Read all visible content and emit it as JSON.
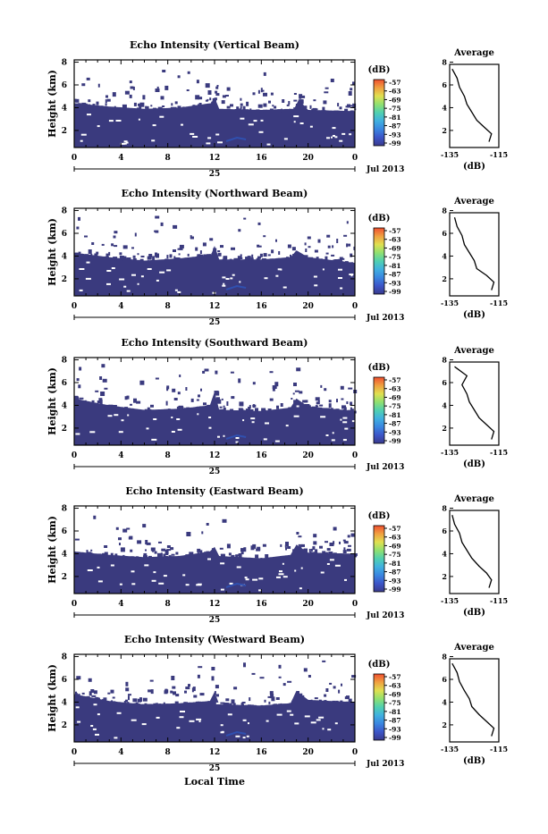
{
  "figure": {
    "xlabel_bottom": "Local Time",
    "date_tick": "25",
    "date_label": "Jul 2013",
    "x_ticks": [
      "0",
      "4",
      "8",
      "12",
      "16",
      "20",
      "0"
    ],
    "y_ticks": [
      "2",
      "4",
      "6",
      "8"
    ],
    "ylabel": "Height (km)",
    "colorbar_unit": "(dB)",
    "colorbar_ticks": [
      "-57",
      "-63",
      "-69",
      "-75",
      "-81",
      "-87",
      "-93",
      "-99"
    ],
    "avg_title": "Average",
    "avg_xticks": [
      "-135",
      "-115"
    ],
    "avg_xlabel": "(dB)",
    "colors": {
      "low_echo": "#3a3a7e",
      "mid_echo": "#3050b0",
      "colorbar": [
        "#3a3a8c",
        "#3c55c8",
        "#3a86e0",
        "#40b0e0",
        "#50d0b0",
        "#90e070",
        "#e0e050",
        "#f0a040",
        "#f05030"
      ]
    }
  },
  "chart_data": [
    {
      "type": "heatmap",
      "title": "Echo Intensity (Vertical Beam)",
      "xlabel": "Local Time",
      "ylabel": "Height (km)",
      "xlim": [
        0,
        24
      ],
      "ylim": [
        0.5,
        8.2
      ],
      "colorbar": {
        "label": "(dB)",
        "range": [
          -99,
          -57
        ]
      },
      "echo_top_km": [
        {
          "t": 0,
          "h": 4.4
        },
        {
          "t": 3,
          "h": 4.1
        },
        {
          "t": 6,
          "h": 3.9
        },
        {
          "t": 9,
          "h": 4.0
        },
        {
          "t": 11.7,
          "h": 4.4
        },
        {
          "t": 12,
          "h": 4.9
        },
        {
          "t": 12.4,
          "h": 3.9
        },
        {
          "t": 16,
          "h": 3.8
        },
        {
          "t": 18.8,
          "h": 3.9
        },
        {
          "t": 19.2,
          "h": 4.7
        },
        {
          "t": 20,
          "h": 3.8
        },
        {
          "t": 24,
          "h": 3.7
        }
      ],
      "average_profile": {
        "title": "Average",
        "xlabel": "(dB)",
        "xlim": [
          -135,
          -115
        ],
        "x": [
          -119,
          -118,
          -121,
          -124,
          -126,
          -128,
          -129,
          -131,
          -132,
          -134
        ],
        "y": [
          1.0,
          1.7,
          2.3,
          2.9,
          3.6,
          4.3,
          5.0,
          5.8,
          6.6,
          7.4
        ]
      }
    },
    {
      "type": "heatmap",
      "title": "Echo Intensity (Northward Beam)",
      "xlabel": "Local Time",
      "ylabel": "Height (km)",
      "xlim": [
        0,
        24
      ],
      "ylim": [
        0.5,
        8.2
      ],
      "colorbar": {
        "label": "(dB)",
        "range": [
          -99,
          -57
        ]
      },
      "echo_top_km": [
        {
          "t": 0,
          "h": 4.3
        },
        {
          "t": 3,
          "h": 3.9
        },
        {
          "t": 6,
          "h": 3.6
        },
        {
          "t": 9,
          "h": 3.8
        },
        {
          "t": 11.7,
          "h": 4.1
        },
        {
          "t": 12,
          "h": 4.9
        },
        {
          "t": 12.4,
          "h": 3.7
        },
        {
          "t": 16,
          "h": 3.7
        },
        {
          "t": 18.5,
          "h": 3.9
        },
        {
          "t": 19,
          "h": 4.5
        },
        {
          "t": 20,
          "h": 3.9
        },
        {
          "t": 24,
          "h": 3.4
        }
      ],
      "average_profile": {
        "title": "Average",
        "xlabel": "(dB)",
        "xlim": [
          -135,
          -115
        ],
        "x": [
          -118,
          -117,
          -120,
          -124,
          -125,
          -127,
          -129,
          -130,
          -132,
          -133
        ],
        "y": [
          1.0,
          1.7,
          2.3,
          2.9,
          3.6,
          4.3,
          5.0,
          5.8,
          6.6,
          7.4
        ]
      }
    },
    {
      "type": "heatmap",
      "title": "Echo Intensity (Southward Beam)",
      "xlabel": "Local Time",
      "ylabel": "Height (km)",
      "xlim": [
        0,
        24
      ],
      "ylim": [
        0.5,
        8.2
      ],
      "colorbar": {
        "label": "(dB)",
        "range": [
          -99,
          -57
        ]
      },
      "echo_top_km": [
        {
          "t": 0,
          "h": 4.6
        },
        {
          "t": 3,
          "h": 4.0
        },
        {
          "t": 6,
          "h": 3.6
        },
        {
          "t": 9,
          "h": 3.7
        },
        {
          "t": 11.6,
          "h": 4.0
        },
        {
          "t": 12,
          "h": 5.2
        },
        {
          "t": 12.4,
          "h": 3.6
        },
        {
          "t": 16,
          "h": 3.5
        },
        {
          "t": 18.5,
          "h": 3.8
        },
        {
          "t": 19,
          "h": 4.6
        },
        {
          "t": 20,
          "h": 3.9
        },
        {
          "t": 24,
          "h": 3.5
        }
      ],
      "average_profile": {
        "title": "Average",
        "xlabel": "(dB)",
        "xlim": [
          -135,
          -115
        ],
        "x": [
          -118,
          -117,
          -120,
          -123,
          -125,
          -127,
          -128,
          -130,
          -128,
          -133
        ],
        "y": [
          1.0,
          1.7,
          2.3,
          2.9,
          3.6,
          4.3,
          5.0,
          5.8,
          6.6,
          7.4
        ]
      }
    },
    {
      "type": "heatmap",
      "title": "Echo Intensity (Eastward Beam)",
      "xlabel": "Local Time",
      "ylabel": "Height (km)",
      "xlim": [
        0,
        24
      ],
      "ylim": [
        0.5,
        8.2
      ],
      "colorbar": {
        "label": "(dB)",
        "range": [
          -99,
          -57
        ]
      },
      "echo_top_km": [
        {
          "t": 0,
          "h": 4.2
        },
        {
          "t": 3,
          "h": 3.9
        },
        {
          "t": 6,
          "h": 3.7
        },
        {
          "t": 9,
          "h": 3.8
        },
        {
          "t": 11.6,
          "h": 4.2
        },
        {
          "t": 12,
          "h": 4.6
        },
        {
          "t": 12.4,
          "h": 3.8
        },
        {
          "t": 16,
          "h": 3.6
        },
        {
          "t": 18.5,
          "h": 3.9
        },
        {
          "t": 19,
          "h": 4.8
        },
        {
          "t": 20,
          "h": 4.1
        },
        {
          "t": 24,
          "h": 4.0
        }
      ],
      "average_profile": {
        "title": "Average",
        "xlabel": "(dB)",
        "xlim": [
          -135,
          -115
        ],
        "x": [
          -119,
          -118,
          -120,
          -123,
          -126,
          -128,
          -130,
          -131,
          -133,
          -134
        ],
        "y": [
          1.0,
          1.7,
          2.3,
          2.9,
          3.6,
          4.3,
          5.0,
          5.8,
          6.6,
          7.4
        ]
      }
    },
    {
      "type": "heatmap",
      "title": "Echo Intensity (Westward Beam)",
      "xlabel": "Local Time",
      "ylabel": "Height (km)",
      "xlim": [
        0,
        24
      ],
      "ylim": [
        0.5,
        8.2
      ],
      "colorbar": {
        "label": "(dB)",
        "range": [
          -99,
          -57
        ]
      },
      "echo_top_km": [
        {
          "t": 0,
          "h": 4.7
        },
        {
          "t": 3,
          "h": 4.1
        },
        {
          "t": 6,
          "h": 3.8
        },
        {
          "t": 9,
          "h": 3.9
        },
        {
          "t": 11.6,
          "h": 4.1
        },
        {
          "t": 12,
          "h": 4.9
        },
        {
          "t": 12.4,
          "h": 3.8
        },
        {
          "t": 16,
          "h": 3.7
        },
        {
          "t": 18.5,
          "h": 3.9
        },
        {
          "t": 19,
          "h": 5.0
        },
        {
          "t": 20,
          "h": 4.2
        },
        {
          "t": 24,
          "h": 4.0
        }
      ],
      "average_profile": {
        "title": "Average",
        "xlabel": "(dB)",
        "xlim": [
          -135,
          -115
        ],
        "x": [
          -118,
          -117,
          -120,
          -123,
          -126,
          -127,
          -129,
          -131,
          -132,
          -134
        ],
        "y": [
          1.0,
          1.7,
          2.3,
          2.9,
          3.6,
          4.3,
          5.0,
          5.8,
          6.6,
          7.4
        ]
      }
    }
  ]
}
